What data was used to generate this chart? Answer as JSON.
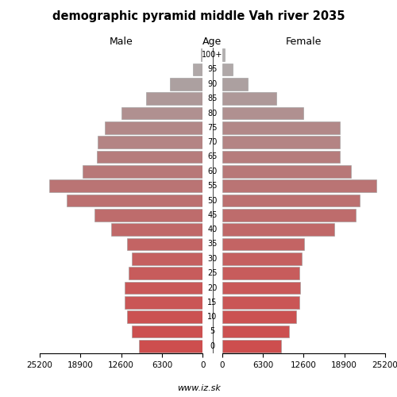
{
  "title": "demographic pyramid middle Vah river 2035",
  "xlabel_left": "Male",
  "xlabel_right": "Female",
  "xlabel_center": "Age",
  "footer": "www.iz.sk",
  "xlim": 25200,
  "xticks": [
    0,
    6300,
    12600,
    18900,
    25200
  ],
  "bar_height": 0.85,
  "background_color": "#ffffff",
  "age_groups": [
    {
      "age": "0",
      "male": 9800,
      "female": 9100,
      "color": "#cd4e4e"
    },
    {
      "age": "5",
      "male": 10900,
      "female": 10400,
      "color": "#cc5050"
    },
    {
      "age": "10",
      "male": 11700,
      "female": 11500,
      "color": "#cb5252"
    },
    {
      "age": "15",
      "male": 12000,
      "female": 11900,
      "color": "#ca5656"
    },
    {
      "age": "20",
      "male": 12100,
      "female": 12000,
      "color": "#c95858"
    },
    {
      "age": "25",
      "male": 11400,
      "female": 11900,
      "color": "#c75c5c"
    },
    {
      "age": "30",
      "male": 11000,
      "female": 12300,
      "color": "#c56060"
    },
    {
      "age": "35",
      "male": 11700,
      "female": 12700,
      "color": "#c36464"
    },
    {
      "age": "40",
      "male": 14100,
      "female": 17400,
      "color": "#c06868"
    },
    {
      "age": "45",
      "male": 16700,
      "female": 20600,
      "color": "#be6c6c"
    },
    {
      "age": "50",
      "male": 21000,
      "female": 21300,
      "color": "#bc7070"
    },
    {
      "age": "55",
      "male": 23700,
      "female": 23900,
      "color": "#ba7474"
    },
    {
      "age": "60",
      "male": 18600,
      "female": 19900,
      "color": "#b87878"
    },
    {
      "age": "65",
      "male": 16400,
      "female": 18200,
      "color": "#b67c7c"
    },
    {
      "age": "70",
      "male": 16200,
      "female": 18200,
      "color": "#b48484"
    },
    {
      "age": "75",
      "male": 15100,
      "female": 18200,
      "color": "#b28888"
    },
    {
      "age": "80",
      "male": 12500,
      "female": 12600,
      "color": "#b09090"
    },
    {
      "age": "85",
      "male": 8700,
      "female": 8400,
      "color": "#ae9898"
    },
    {
      "age": "90",
      "male": 5100,
      "female": 4000,
      "color": "#aca0a0"
    },
    {
      "age": "95",
      "male": 1500,
      "female": 1600,
      "color": "#b0a8a8"
    },
    {
      "age": "100+",
      "male": 300,
      "female": 400,
      "color": "#b4b0b0"
    }
  ]
}
